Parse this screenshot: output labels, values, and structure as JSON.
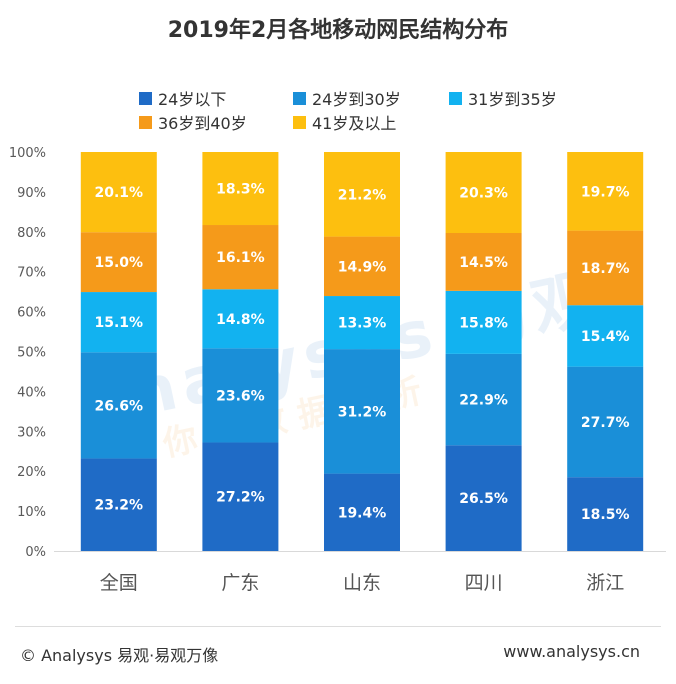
{
  "chart_data": {
    "type": "bar",
    "stacked": true,
    "title": "2019年2月各地移动网民结构分布",
    "categories": [
      "全国",
      "广东",
      "山东",
      "四川",
      "浙江"
    ],
    "series": [
      {
        "name": "24岁以下",
        "color": "#1f6bc6",
        "values": [
          23.2,
          27.2,
          19.4,
          26.5,
          18.5
        ]
      },
      {
        "name": "24岁到30岁",
        "color": "#1a8fd8",
        "values": [
          26.6,
          23.6,
          31.2,
          22.9,
          27.7
        ]
      },
      {
        "name": "31岁到35岁",
        "color": "#12b2f0",
        "values": [
          15.1,
          14.8,
          13.3,
          15.8,
          15.4
        ]
      },
      {
        "name": "36岁到40岁",
        "color": "#f59a1a",
        "values": [
          15.0,
          16.1,
          14.9,
          14.5,
          18.7
        ]
      },
      {
        "name": "41岁及以上",
        "color": "#fdbf0f",
        "values": [
          20.1,
          18.3,
          21.2,
          20.3,
          19.7
        ]
      }
    ],
    "value_labels": [
      [
        "23.2%",
        "27.2%",
        "19.4%",
        "26.5%",
        "18.5%"
      ],
      [
        "26.6%",
        "23.6%",
        "31.2%",
        "22.9%",
        "27.7%"
      ],
      [
        "15.1%",
        "14.8%",
        "13.3%",
        "15.8%",
        "15.4%"
      ],
      [
        "15.0%",
        "16.1%",
        "14.9%",
        "14.5%",
        "18.7%"
      ],
      [
        "20.1%",
        "18.3%",
        "21.2%",
        "20.3%",
        "19.7%"
      ]
    ],
    "y_ticks": [
      "0%",
      "10%",
      "20%",
      "30%",
      "40%",
      "50%",
      "60%",
      "70%",
      "80%",
      "90%",
      "100%"
    ],
    "ylim": [
      0,
      100
    ],
    "legend_position": "top",
    "grid": false
  },
  "footer": {
    "source": "© Analysys 易观·易观万像",
    "url": "www.analysys.cn"
  },
  "watermark": {
    "brand": "Analysys 易观",
    "slogan": "你 的 数 据 分 析"
  }
}
